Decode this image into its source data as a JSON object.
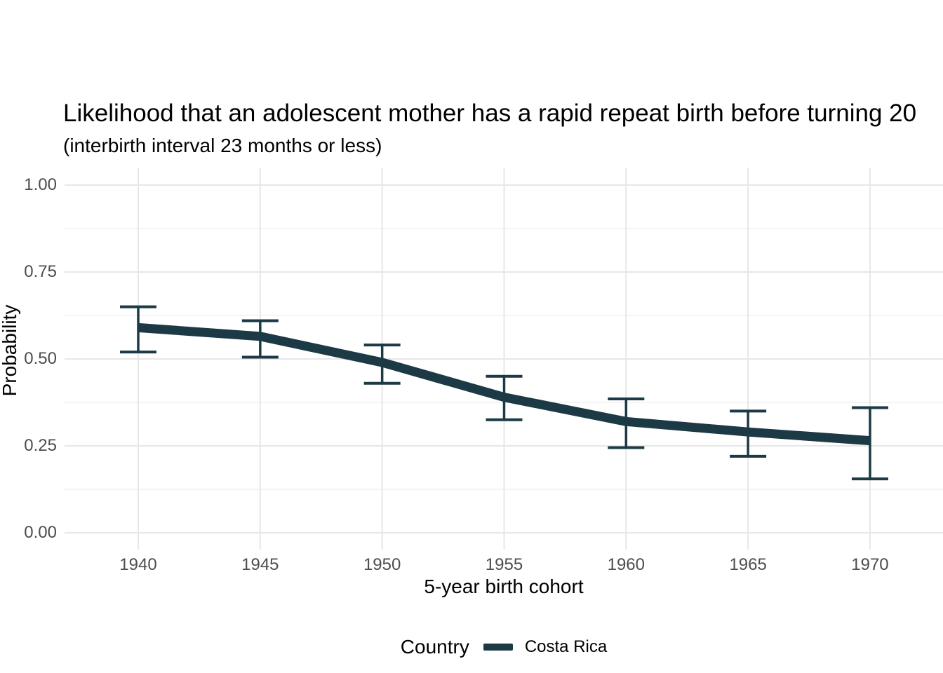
{
  "chart_data": {
    "type": "line",
    "title": "Likelihood that an adolescent mother has a rapid repeat birth before turning 20",
    "subtitle": "(interbirth interval 23 months or less)",
    "xlabel": "5-year birth cohort",
    "ylabel": "Probability",
    "categories": [
      "1940",
      "1945",
      "1950",
      "1955",
      "1960",
      "1965",
      "1970"
    ],
    "series": [
      {
        "name": "Costa Rica",
        "values": [
          0.59,
          0.565,
          0.49,
          0.39,
          0.32,
          0.29,
          0.265
        ],
        "ci_lower": [
          0.52,
          0.505,
          0.43,
          0.325,
          0.245,
          0.22,
          0.155
        ],
        "ci_upper": [
          0.65,
          0.61,
          0.54,
          0.45,
          0.385,
          0.35,
          0.36
        ],
        "color": "#1c3a45"
      }
    ],
    "ylim": [
      0,
      1
    ],
    "yticks": [
      {
        "value": 0,
        "label": "0.00"
      },
      {
        "value": 0.25,
        "label": "0.25"
      },
      {
        "value": 0.5,
        "label": "0.50"
      },
      {
        "value": 0.75,
        "label": "0.75"
      },
      {
        "value": 1,
        "label": "1.00"
      }
    ],
    "y_minor_ticks": [
      0.125,
      0.375,
      0.625,
      0.875
    ],
    "grid": {
      "horizontal_major": true,
      "horizontal_minor": true,
      "vertical_major": true,
      "vertical_minor": false
    },
    "legend": {
      "title": "Country",
      "position": "bottom",
      "items": [
        {
          "label": "Costa Rica",
          "color": "#1c3a45"
        }
      ]
    },
    "colors": {
      "line": "#1c3a45",
      "grid_major": "#e7e7e7",
      "grid_minor": "#f1f1f1",
      "tick_text": "#4d4d4d",
      "text": "#000000",
      "background": "#ffffff"
    }
  }
}
